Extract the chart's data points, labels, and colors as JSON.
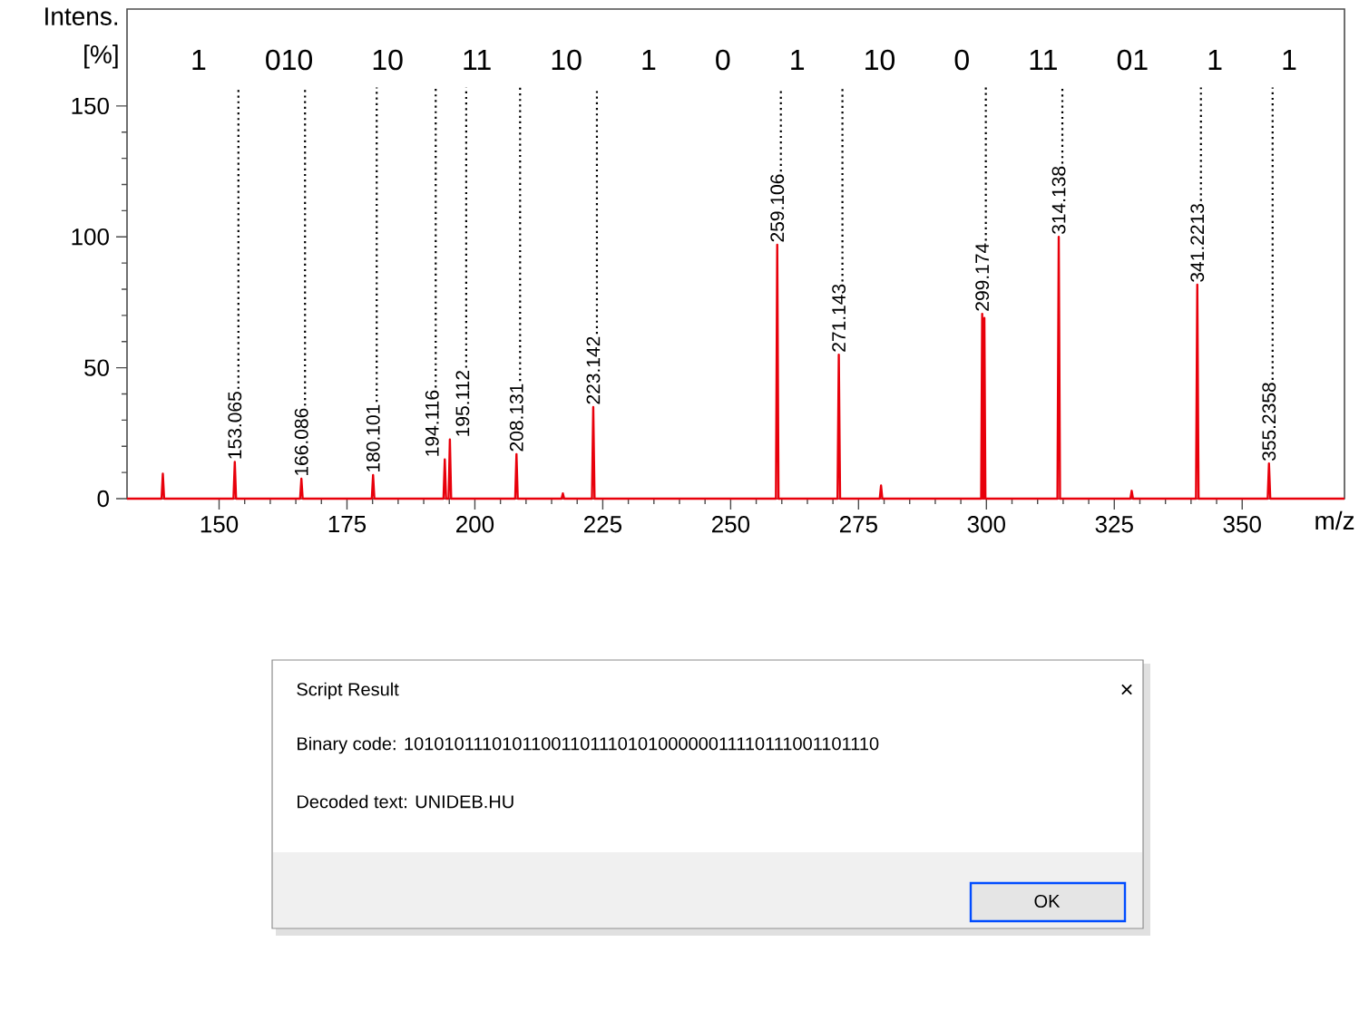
{
  "chart_data": {
    "type": "line",
    "xlabel": "m/z",
    "ylabel": "Intens. [%]",
    "color": "#e8000b",
    "x": [
      132,
      138.75,
      139,
      139.25,
      152.815,
      153.065,
      153.315,
      165.836,
      166.086,
      166.336,
      179.851,
      180.101,
      180.351,
      193.866,
      194.116,
      194.366,
      194.862,
      195.112,
      195.362,
      207.881,
      208.131,
      208.381,
      216.95,
      217.2,
      217.45,
      222.892,
      223.142,
      223.392,
      258.856,
      259.106,
      259.356,
      270.893,
      271.143,
      271.393,
      279.15,
      279.4,
      279.65,
      298.974,
      299.174,
      299.374,
      299.6,
      299.8,
      313.888,
      314.138,
      314.388,
      328.15,
      328.4,
      328.65,
      340.9713,
      341.2213,
      341.4713,
      354.9858,
      355.2358,
      355.4858,
      370
    ],
    "values": [
      0,
      0,
      9.5,
      0,
      0,
      14,
      0,
      0,
      7.6,
      0,
      0,
      9,
      0,
      0,
      15,
      0,
      0,
      22.6,
      0,
      0,
      17,
      0,
      0,
      2,
      0,
      0,
      35,
      0,
      0,
      97,
      0,
      0,
      55,
      0,
      0,
      5,
      0,
      0,
      70.6,
      0,
      69,
      0,
      0,
      100,
      0,
      0,
      3,
      0,
      0,
      81.7,
      0,
      0,
      13.4,
      0,
      0
    ],
    "xlim": [
      132,
      370
    ],
    "ylim": [
      0,
      187
    ],
    "xticks": [
      150,
      175,
      200,
      225,
      250,
      275,
      300,
      325,
      350
    ],
    "yticks": [
      0,
      50,
      100,
      150
    ],
    "annotations": [
      {
        "text": "153.065",
        "x": 153.065,
        "y": 14
      },
      {
        "text": "166.086",
        "x": 166.086,
        "y": 7.6
      },
      {
        "text": "180.101",
        "x": 180.101,
        "y": 9
      },
      {
        "text": "194.116",
        "x": 194.116,
        "y": 15
      },
      {
        "text": "195.112",
        "x": 195.112,
        "y": 22.6
      },
      {
        "text": "208.131",
        "x": 208.131,
        "y": 17
      },
      {
        "text": "223.142",
        "x": 223.142,
        "y": 35
      },
      {
        "text": "259.106",
        "x": 259.106,
        "y": 97
      },
      {
        "text": "271.143",
        "x": 271.143,
        "y": 55
      },
      {
        "text": "299.174",
        "x": 299.174,
        "y": 70.6
      },
      {
        "text": "314.138",
        "x": 314.138,
        "y": 100
      },
      {
        "text": "341.2213",
        "x": 341.2213,
        "y": 81.7
      },
      {
        "text": "355.2358",
        "x": 355.2358,
        "y": 13.4
      },
      "1 010 10 11 10 1 0 1 10 0 11 01 1 1",
      "Script Result",
      "×",
      "Binary code: 1010101110101100110111010100000011110111001101110",
      "Decoded text: UNIDEB.HU",
      "OK"
    ]
  }
}
